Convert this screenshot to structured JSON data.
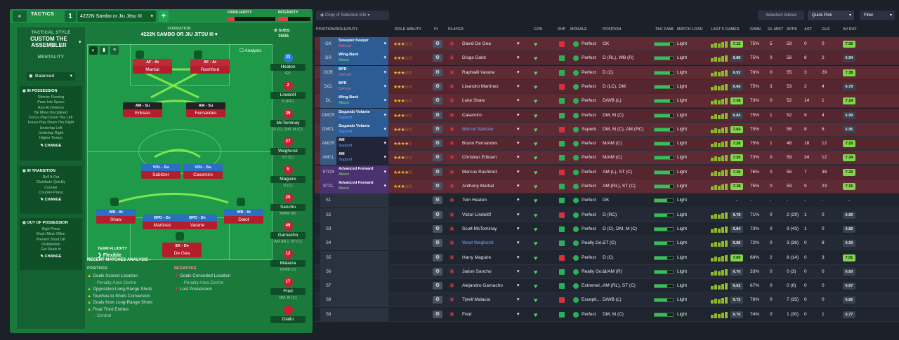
{
  "tactics": {
    "back": "«",
    "label": "TACTICS",
    "number": "1",
    "name": "4222N Sambo or Jiu Jitsu III",
    "familiarity": "FAMILIARITY",
    "intensity": "INTENSITY",
    "familiarity_level": 0.15,
    "intensity_level": 0.3
  },
  "style": {
    "title": "TACTICAL STYLE",
    "name": "CUSTOM THE ASSEMBLER",
    "mentality_label": "MENTALITY",
    "mentality": "Balanced",
    "in_possession": {
      "title": "IN POSSESSION",
      "items": [
        "Shorter Passing",
        "Pass Into Space",
        "Run At Defence",
        "Be More Disciplined",
        "Focus Play Down The Left",
        "Focus Play Down The Right",
        "Underlap Left",
        "Underlap Right",
        "Higher Tempo"
      ],
      "change": "CHANGE"
    },
    "in_transition": {
      "title": "IN TRANSITION",
      "items": [
        "Roll It Out",
        "Distribute Quickly",
        "Counter",
        "Counter-Press"
      ],
      "change": "CHANGE"
    },
    "out_of_possession": {
      "title": "OUT OF POSSESSION",
      "items": [
        "High Press",
        "Much More Often",
        "Prevent Short GK",
        "Distribution",
        "Get Stuck In"
      ],
      "change": "CHANGE"
    }
  },
  "formation": {
    "label": "FORMATION",
    "name": "4222N SAMBO OR JIU JITSU III",
    "analysis": "Analysis",
    "subs_label": "SUBS:",
    "subs_count": "15/15",
    "fluidity_label": "TEAM FLUIDITY",
    "fluidity": "Flexible"
  },
  "pitch_players": [
    {
      "role": "AF - At",
      "name": "Martial"
    },
    {
      "role": "AF - At",
      "name": "Rashford"
    },
    {
      "role": "AM - Su",
      "name": "Eriksen"
    },
    {
      "role": "AM - Su",
      "name": "Fernandes"
    },
    {
      "role": "VOL - Su",
      "name": "Sabitzer"
    },
    {
      "role": "VOL - Su",
      "name": "Casemiro"
    },
    {
      "role": "WB - At",
      "name": "Shaw"
    },
    {
      "role": "BPD - De",
      "name": "Martinez"
    },
    {
      "role": "BPD - De",
      "name": "Varane"
    },
    {
      "role": "WB - At",
      "name": "Dalot"
    },
    {
      "role": "SK - De",
      "name": "De Gea"
    }
  ],
  "subs": [
    {
      "num": "22",
      "name": "Heaton",
      "pos": "GK"
    },
    {
      "num": "2",
      "name": "Lindelöf",
      "pos": "D (RC)"
    },
    {
      "num": "39",
      "name": "McTominay",
      "pos": "D (C), DM, M (C)"
    },
    {
      "num": "27",
      "name": "Weghorst",
      "pos": "ST (C)"
    },
    {
      "num": "5",
      "name": "Maguire",
      "pos": "D (C)"
    },
    {
      "num": "25",
      "name": "Sancho",
      "pos": "M/AM (R)"
    },
    {
      "num": "49",
      "name": "Garnacho",
      "pos": "AM (RL), ST (C)"
    },
    {
      "num": "12",
      "name": "Malacia",
      "pos": "D/WB (L)"
    },
    {
      "num": "17",
      "name": "Fred",
      "pos": "DM, M (C)"
    },
    {
      "num": "",
      "name": "Diallo",
      "pos": ""
    }
  ],
  "analysis": {
    "title": "RECENT MATCHES ANALYSIS ›",
    "positives_title": "POSITIVES",
    "negatives_title": "NEGATIVES",
    "positives": [
      "Goals Scored Location",
      "- Penalty Area Centre",
      "Opposition Long-Range Shots",
      "Touches to Shots Conversion",
      "Goals from Long-Range Shots",
      "Final Third Entries",
      "- Central"
    ],
    "negatives": [
      "Goals Conceded Location",
      "- Penalty Area Centre",
      "Lost Possession"
    ]
  },
  "toolbar": {
    "view": "Copy of Selection Info",
    "selection_advice": "Selection Advice",
    "quick_pick": "Quick Pick",
    "filter": "Filter"
  },
  "columns": [
    "POSITION/ROLE/DUTY",
    "ROLE ABILITY",
    "PI",
    "PLAYER",
    "CON",
    "SHP",
    "MORALE",
    "POSITION",
    "TAC FAMI",
    "MATCH LOAD",
    "LAST 5 GAMES",
    "GWIN",
    "GL MIST",
    "APPS",
    "AST",
    "GLS",
    "AV RAT"
  ],
  "rows": [
    {
      "pos": "GK",
      "r1": "Sweeper Keeper",
      "r2": "Defend",
      "stars": "★★★☆☆",
      "name": "David De Gea",
      "morale": "Perfect",
      "position": "GK",
      "load": "Light",
      "rating": "7.12",
      "gwin": "75%",
      "glmist": "5",
      "apps": "59",
      "ast": "0",
      "gls": "0",
      "av": "7.05"
    },
    {
      "pos": "DR",
      "r1": "Wing-Back",
      "r2": "Attack",
      "stars": "★★★☆☆",
      "name": "Diogo Dalot",
      "morale": "Perfect",
      "position": "D (RL), WB (R)",
      "load": "Light",
      "rating": "6.88",
      "gwin": "75%",
      "glmist": "0",
      "apps": "56",
      "ast": "8",
      "gls": "2",
      "av": "6.94"
    },
    {
      "pos": "DCR",
      "r1": "BPD",
      "r2": "Defend",
      "stars": "★★★☆☆",
      "name": "Raphaël Varane",
      "morale": "Perfect",
      "position": "D (C)",
      "load": "Light",
      "rating": "6.92",
      "gwin": "76%",
      "glmist": "0",
      "apps": "55",
      "ast": "3",
      "gls": "29",
      "av": "7.38"
    },
    {
      "pos": "DCL",
      "r1": "BPD",
      "r2": "Defend",
      "stars": "★★★☆☆",
      "name": "Lisandro Martínez",
      "morale": "Perfect",
      "position": "D (LC), DM",
      "load": "Light",
      "rating": "6.66",
      "gwin": "75%",
      "glmist": "3",
      "apps": "53",
      "ast": "2",
      "gls": "4",
      "av": "6.79"
    },
    {
      "pos": "DL",
      "r1": "Wing-Back",
      "r2": "Attack",
      "stars": "★★★☆☆",
      "name": "Luke Shaw",
      "morale": "Perfect",
      "position": "D/WB (L)",
      "load": "Light",
      "rating": "7.38",
      "gwin": "73%",
      "glmist": "0",
      "apps": "52",
      "ast": "14",
      "gls": "1",
      "av": "7.14"
    },
    {
      "pos": "DMCR",
      "r1": "Segundo Volante",
      "r2": "Support",
      "stars": "★★★☆☆",
      "name": "Casemiro",
      "morale": "Perfect",
      "position": "DM, M (C)",
      "load": "Light",
      "rating": "6.84",
      "gwin": "75%",
      "glmist": "1",
      "apps": "52",
      "ast": "9",
      "gls": "4",
      "av": "6.99"
    },
    {
      "pos": "DMCL",
      "r1": "Segundo Volante",
      "r2": "Support",
      "stars": "★★★☆☆",
      "name": "Marcel Sabitzer",
      "morale": "Superb",
      "position": "DM, M (C), AM (RC)",
      "load": "Light",
      "rating": "7.04",
      "gwin": "75%",
      "glmist": "1",
      "apps": "56",
      "ast": "8",
      "gls": "6",
      "av": "6.95"
    },
    {
      "pos": "AMCR",
      "r1": "AM",
      "r2": "Support",
      "stars": "★★★★☆",
      "name": "Bruno Fernandes",
      "morale": "Perfect",
      "position": "M/AM (C)",
      "load": "Light",
      "rating": "7.28",
      "gwin": "75%",
      "glmist": "1",
      "apps": "48",
      "ast": "18",
      "gls": "12",
      "av": "7.15"
    },
    {
      "pos": "AMCL",
      "r1": "AM",
      "r2": "Support",
      "stars": "★★★☆☆",
      "name": "Christian Eriksen",
      "morale": "Perfect",
      "position": "M/AM (C)",
      "load": "Light",
      "rating": "7.20",
      "gwin": "73%",
      "glmist": "0",
      "apps": "59",
      "ast": "34",
      "gls": "12",
      "av": "7.34"
    },
    {
      "pos": "STCR",
      "r1": "Advanced Forward",
      "r2": "Attack",
      "stars": "★★★★☆",
      "name": "Marcus Rashford",
      "morale": "Perfect",
      "position": "AM (L), ST (C)",
      "load": "Light",
      "rating": "7.16",
      "gwin": "76%",
      "glmist": "0",
      "apps": "55",
      "ast": "7",
      "gls": "38",
      "av": "7.33"
    },
    {
      "pos": "STCL",
      "r1": "Advanced Forward",
      "r2": "Attack",
      "stars": "★★★☆☆",
      "name": "Anthony Martial",
      "morale": "Perfect",
      "position": "AM (RL), ST (C)",
      "load": "Light",
      "rating": "7.18",
      "gwin": "75%",
      "glmist": "0",
      "apps": "59",
      "ast": "9",
      "gls": "23",
      "av": "7.15"
    },
    {
      "pos": "S1",
      "r1": "",
      "r2": "",
      "stars": "",
      "name": "Tom Heaton",
      "morale": "Perfect",
      "position": "GK",
      "load": "Light",
      "rating": "-",
      "gwin": "-",
      "glmist": "-",
      "apps": "-",
      "ast": "-",
      "gls": "-",
      "av": "-"
    },
    {
      "pos": "S2",
      "r1": "",
      "r2": "",
      "stars": "",
      "name": "Victor Lindelöf",
      "morale": "Perfect",
      "position": "D (RC)",
      "load": "Light",
      "rating": "6.78",
      "gwin": "71%",
      "glmist": "0",
      "apps": "2 (29)",
      "ast": "1",
      "gls": "0",
      "av": "6.65"
    },
    {
      "pos": "S3",
      "r1": "",
      "r2": "",
      "stars": "",
      "name": "Scott McTominay",
      "morale": "Perfect",
      "position": "D (C), DM, M (C)",
      "load": "Light",
      "rating": "6.84",
      "gwin": "73%",
      "glmist": "0",
      "apps": "9 (43)",
      "ast": "1",
      "gls": "0",
      "av": "6.82"
    },
    {
      "pos": "S4",
      "r1": "",
      "r2": "",
      "stars": "",
      "name": "Wout Weghorst",
      "morale": "Really Go…",
      "position": "ST (C)",
      "load": "Light",
      "rating": "6.88",
      "gwin": "72%",
      "glmist": "0",
      "apps": "3 (36)",
      "ast": "0",
      "gls": "8",
      "av": "6.93"
    },
    {
      "pos": "S5",
      "r1": "",
      "r2": "",
      "stars": "",
      "name": "Harry Maguire",
      "morale": "Perfect",
      "position": "D (C)",
      "load": "Light",
      "rating": "7.60",
      "gwin": "68%",
      "glmist": "2",
      "apps": "8 (14)",
      "ast": "0",
      "gls": "3",
      "av": "7.01"
    },
    {
      "pos": "S6",
      "r1": "",
      "r2": "",
      "stars": "",
      "name": "Jadon Sancho",
      "morale": "Really Go…",
      "position": "M/AM (R)",
      "load": "Light",
      "rating": "6.70",
      "gwin": "33%",
      "glmist": "0",
      "apps": "0 (3)",
      "ast": "0",
      "gls": "0",
      "av": "6.60"
    },
    {
      "pos": "S7",
      "r1": "",
      "r2": "",
      "stars": "",
      "name": "Alejandro Garnacho",
      "morale": "Extremel…",
      "position": "AM (RL), ST (C)",
      "load": "Light",
      "rating": "6.62",
      "gwin": "67%",
      "glmist": "0",
      "apps": "0 (6)",
      "ast": "0",
      "gls": "0",
      "av": "6.67"
    },
    {
      "pos": "S8",
      "r1": "",
      "r2": "",
      "stars": "",
      "name": "Tyrell Malacia",
      "morale": "Excepti…",
      "position": "D/WB (L)",
      "load": "Light",
      "rating": "6.72",
      "gwin": "76%",
      "glmist": "0",
      "apps": "7 (35)",
      "ast": "0",
      "gls": "0",
      "av": "6.82"
    },
    {
      "pos": "S9",
      "r1": "",
      "r2": "",
      "stars": "",
      "name": "Fred",
      "morale": "Perfect",
      "position": "DM, M (C)",
      "load": "Light",
      "rating": "6.70",
      "gwin": "74%",
      "glmist": "0",
      "apps": "1 (30)",
      "ast": "0",
      "gls": "1",
      "av": "6.77"
    }
  ],
  "colors": {
    "red_row": "#5a2a33",
    "blue_role": "#2d5c95",
    "purple_role": "#4a3170",
    "green_panel": "#197a3c"
  }
}
